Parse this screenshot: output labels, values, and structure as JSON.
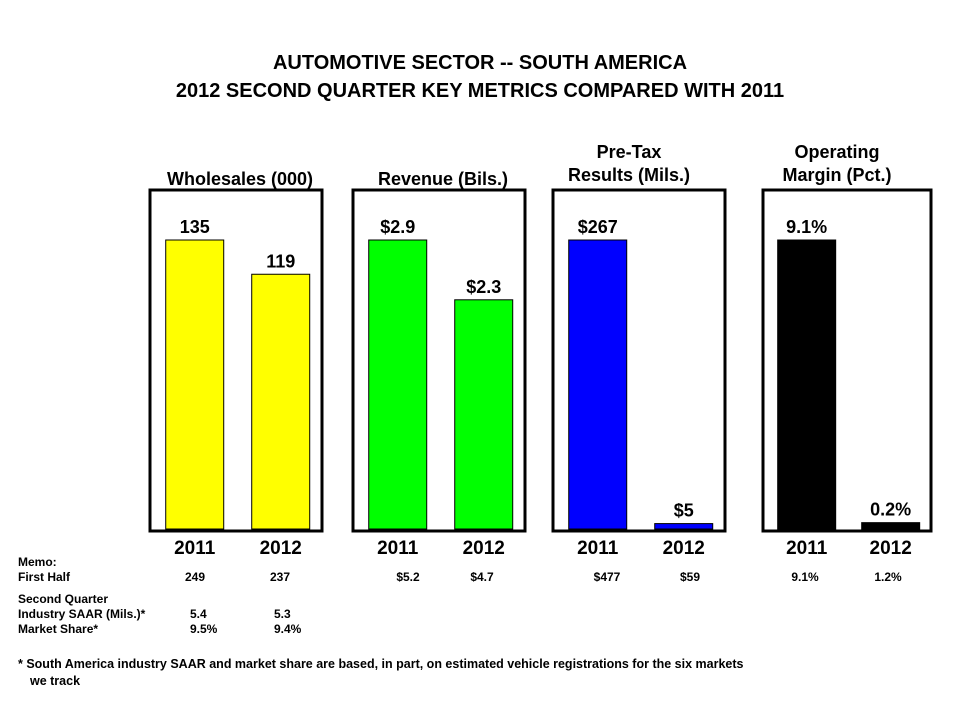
{
  "title_line1": "AUTOMOTIVE SECTOR -- SOUTH AMERICA",
  "title_line2": "2012 SECOND QUARTER KEY METRICS COMPARED WITH 2011",
  "chart_data": [
    {
      "type": "bar",
      "title": "Wholesales (000)",
      "categories": [
        "2011",
        "2012"
      ],
      "values": [
        135,
        119
      ],
      "value_labels": [
        "135",
        "119"
      ],
      "color": "#FFFF00"
    },
    {
      "type": "bar",
      "title": "Revenue (Bils.)",
      "categories": [
        "2011",
        "2012"
      ],
      "values": [
        2.9,
        2.3
      ],
      "value_labels": [
        "$2.9",
        "$2.3"
      ],
      "color": "#00FF00"
    },
    {
      "type": "bar",
      "title_lines": [
        "Pre-Tax",
        "Results (Mils.)"
      ],
      "categories": [
        "2011",
        "2012"
      ],
      "values": [
        267,
        5
      ],
      "value_labels": [
        "$267",
        "$5"
      ],
      "color": "#0000FF"
    },
    {
      "type": "bar",
      "title_lines": [
        "Operating",
        "Margin (Pct.)"
      ],
      "categories": [
        "2011",
        "2012"
      ],
      "values": [
        9.1,
        0.2
      ],
      "value_labels": [
        "9.1%",
        "0.2%"
      ],
      "color": "#000000"
    }
  ],
  "memo": {
    "heading": "Memo:",
    "first_half_label": "First Half",
    "first_half_values": [
      "249",
      "237",
      "$5.2",
      "$4.7",
      "$477",
      "$59",
      "9.1%",
      "1.2%"
    ],
    "second_quarter_label": "Second Quarter",
    "saar_label": "Industry SAAR (Mils.)*",
    "saar_values": [
      "5.4",
      "5.3"
    ],
    "share_label": "Market Share*",
    "share_values": [
      "9.5%",
      "9.4%"
    ]
  },
  "footnote_line1": "*  South America industry SAAR  and market share are based, in part, on estimated vehicle registrations for the six markets",
  "footnote_line2": "we track"
}
